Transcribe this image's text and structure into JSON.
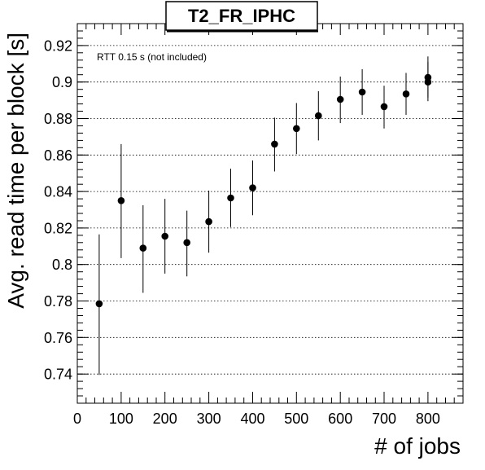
{
  "chart_data": {
    "type": "scatter",
    "title": "T2_FR_IPHC",
    "annotation": "RTT 0.15 s (not included)",
    "xlabel": "# of jobs",
    "ylabel": "Avg. read time per block [s]",
    "xlim": [
      0,
      880
    ],
    "ylim": [
      0.724,
      0.932
    ],
    "x_ticks": [
      0,
      100,
      200,
      300,
      400,
      500,
      600,
      700,
      800
    ],
    "y_ticks": [
      0.74,
      0.76,
      0.78,
      0.8,
      0.82,
      0.84,
      0.86,
      0.88,
      0.9,
      0.92
    ],
    "y_tick_labels": [
      "0.74",
      "0.76",
      "0.78",
      "0.8",
      "0.82",
      "0.84",
      "0.86",
      "0.88",
      "0.9",
      "0.92"
    ],
    "grid": "horizontal-dotted",
    "points": [
      {
        "x": 50,
        "y": 0.7785,
        "y_low": 0.7395,
        "y_high": 0.8165
      },
      {
        "x": 100,
        "y": 0.835,
        "y_low": 0.8035,
        "y_high": 0.866
      },
      {
        "x": 150,
        "y": 0.809,
        "y_low": 0.7845,
        "y_high": 0.8325
      },
      {
        "x": 200,
        "y": 0.8155,
        "y_low": 0.795,
        "y_high": 0.836
      },
      {
        "x": 250,
        "y": 0.812,
        "y_low": 0.7935,
        "y_high": 0.8295
      },
      {
        "x": 300,
        "y": 0.8235,
        "y_low": 0.8065,
        "y_high": 0.8405
      },
      {
        "x": 350,
        "y": 0.8365,
        "y_low": 0.8205,
        "y_high": 0.8525
      },
      {
        "x": 400,
        "y": 0.842,
        "y_low": 0.827,
        "y_high": 0.857
      },
      {
        "x": 450,
        "y": 0.866,
        "y_low": 0.851,
        "y_high": 0.8805
      },
      {
        "x": 500,
        "y": 0.8745,
        "y_low": 0.8605,
        "y_high": 0.8885
      },
      {
        "x": 550,
        "y": 0.8815,
        "y_low": 0.868,
        "y_high": 0.895
      },
      {
        "x": 600,
        "y": 0.8905,
        "y_low": 0.8775,
        "y_high": 0.903
      },
      {
        "x": 650,
        "y": 0.8945,
        "y_low": 0.882,
        "y_high": 0.907
      },
      {
        "x": 700,
        "y": 0.8865,
        "y_low": 0.8745,
        "y_high": 0.898
      },
      {
        "x": 750,
        "y": 0.8935,
        "y_low": 0.882,
        "y_high": 0.905
      },
      {
        "x": 800,
        "y": 0.9025,
        "y_low": 0.8915,
        "y_high": 0.914
      },
      {
        "x": 800,
        "y": 0.9,
        "y_low": 0.8895,
        "y_high": 0.911
      }
    ]
  }
}
